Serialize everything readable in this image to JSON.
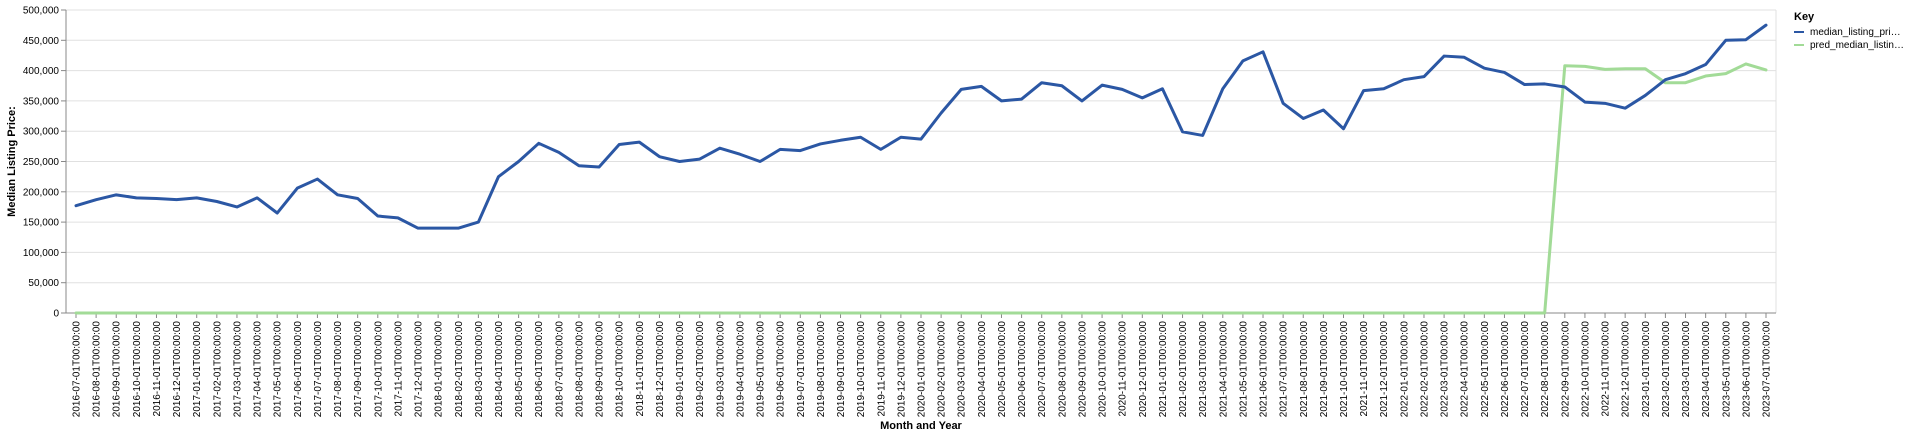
{
  "chart_data": {
    "type": "line",
    "xlabel": "Month and Year",
    "ylabel": "Median Listing Price:",
    "ylim": [
      0,
      500000
    ],
    "yticks": [
      "0",
      "50,000",
      "100,000",
      "150,000",
      "200,000",
      "250,000",
      "300,000",
      "350,000",
      "400,000",
      "450,000",
      "500,000"
    ],
    "grid": true,
    "legend": {
      "title": "Key",
      "position": "right"
    },
    "x": [
      "2016-07-01T00:00:00",
      "2016-08-01T00:00:00",
      "2016-09-01T00:00:00",
      "2016-10-01T00:00:00",
      "2016-11-01T00:00:00",
      "2016-12-01T00:00:00",
      "2017-01-01T00:00:00",
      "2017-02-01T00:00:00",
      "2017-03-01T00:00:00",
      "2017-04-01T00:00:00",
      "2017-05-01T00:00:00",
      "2017-06-01T00:00:00",
      "2017-07-01T00:00:00",
      "2017-08-01T00:00:00",
      "2017-09-01T00:00:00",
      "2017-10-01T00:00:00",
      "2017-11-01T00:00:00",
      "2017-12-01T00:00:00",
      "2018-01-01T00:00:00",
      "2018-02-01T00:00:00",
      "2018-03-01T00:00:00",
      "2018-04-01T00:00:00",
      "2018-05-01T00:00:00",
      "2018-06-01T00:00:00",
      "2018-07-01T00:00:00",
      "2018-08-01T00:00:00",
      "2018-09-01T00:00:00",
      "2018-10-01T00:00:00",
      "2018-11-01T00:00:00",
      "2018-12-01T00:00:00",
      "2019-01-01T00:00:00",
      "2019-02-01T00:00:00",
      "2019-03-01T00:00:00",
      "2019-04-01T00:00:00",
      "2019-05-01T00:00:00",
      "2019-06-01T00:00:00",
      "2019-07-01T00:00:00",
      "2019-08-01T00:00:00",
      "2019-09-01T00:00:00",
      "2019-10-01T00:00:00",
      "2019-11-01T00:00:00",
      "2019-12-01T00:00:00",
      "2020-01-01T00:00:00",
      "2020-02-01T00:00:00",
      "2020-03-01T00:00:00",
      "2020-04-01T00:00:00",
      "2020-05-01T00:00:00",
      "2020-06-01T00:00:00",
      "2020-07-01T00:00:00",
      "2020-08-01T00:00:00",
      "2020-09-01T00:00:00",
      "2020-10-01T00:00:00",
      "2020-11-01T00:00:00",
      "2020-12-01T00:00:00",
      "2021-01-01T00:00:00",
      "2021-02-01T00:00:00",
      "2021-03-01T00:00:00",
      "2021-04-01T00:00:00",
      "2021-05-01T00:00:00",
      "2021-06-01T00:00:00",
      "2021-07-01T00:00:00",
      "2021-08-01T00:00:00",
      "2021-09-01T00:00:00",
      "2021-10-01T00:00:00",
      "2021-11-01T00:00:00",
      "2021-12-01T00:00:00",
      "2022-01-01T00:00:00",
      "2022-02-01T00:00:00",
      "2022-03-01T00:00:00",
      "2022-04-01T00:00:00",
      "2022-05-01T00:00:00",
      "2022-06-01T00:00:00",
      "2022-07-01T00:00:00",
      "2022-08-01T00:00:00",
      "2022-09-01T00:00:00",
      "2022-10-01T00:00:00",
      "2022-11-01T00:00:00",
      "2022-12-01T00:00:00",
      "2023-01-01T00:00:00",
      "2023-02-01T00:00:00",
      "2023-03-01T00:00:00",
      "2023-04-01T00:00:00",
      "2023-05-01T00:00:00",
      "2023-06-01T00:00:00",
      "2023-07-01T00:00:00"
    ],
    "series": [
      {
        "name": "median_listing_pri…",
        "color": "#2b57a4",
        "values": [
          177000,
          187000,
          195000,
          190000,
          189000,
          187000,
          190000,
          184000,
          175000,
          190000,
          165000,
          206000,
          221000,
          195000,
          189000,
          160000,
          157000,
          140000,
          140000,
          140000,
          150000,
          225000,
          250000,
          280000,
          265000,
          243000,
          241000,
          278000,
          282000,
          258000,
          250000,
          254000,
          272000,
          262000,
          250000,
          270000,
          268000,
          279000,
          285000,
          290000,
          270000,
          290000,
          287000,
          330000,
          369000,
          374000,
          350000,
          353000,
          380000,
          375000,
          350000,
          376000,
          369000,
          355000,
          370000,
          299000,
          293000,
          370000,
          416000,
          431000,
          346000,
          321000,
          335000,
          304000,
          367000,
          370000,
          385000,
          390000,
          424000,
          422000,
          404000,
          397000,
          377000,
          378000,
          373000,
          348000,
          346000,
          338000,
          359000,
          385000,
          395000,
          410000,
          450000,
          451000,
          475000
        ]
      },
      {
        "name": "pred_median_listin…",
        "color": "#a2db97",
        "values": [
          0,
          0,
          0,
          0,
          0,
          0,
          0,
          0,
          0,
          0,
          0,
          0,
          0,
          0,
          0,
          0,
          0,
          0,
          0,
          0,
          0,
          0,
          0,
          0,
          0,
          0,
          0,
          0,
          0,
          0,
          0,
          0,
          0,
          0,
          0,
          0,
          0,
          0,
          0,
          0,
          0,
          0,
          0,
          0,
          0,
          0,
          0,
          0,
          0,
          0,
          0,
          0,
          0,
          0,
          0,
          0,
          0,
          0,
          0,
          0,
          0,
          0,
          0,
          0,
          0,
          0,
          0,
          0,
          0,
          0,
          0,
          0,
          0,
          0,
          408000,
          407000,
          402000,
          403000,
          403000,
          380000,
          380000,
          391000,
          395000,
          411000,
          401000
        ]
      }
    ]
  }
}
